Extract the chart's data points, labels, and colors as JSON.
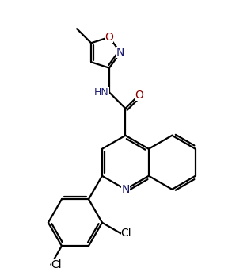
{
  "bg_color": "#ffffff",
  "line_color": "#000000",
  "line_width": 1.6,
  "font_size": 9,
  "fig_width": 2.93,
  "fig_height": 3.43,
  "dpi": 100,
  "xlim": [
    -3.2,
    4.5
  ],
  "ylim": [
    -4.5,
    5.5
  ]
}
